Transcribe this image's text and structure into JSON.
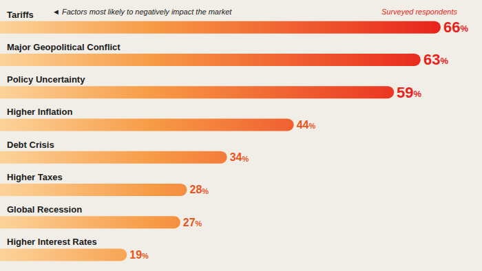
{
  "chart_data": {
    "type": "bar",
    "orientation": "horizontal",
    "categories": [
      "Tariffs",
      "Major Geopolitical Conflict",
      "Policy Uncertainty",
      "Higher Inflation",
      "Debt Crisis",
      "Higher Taxes",
      "Global Recession",
      "Higher Interest Rates"
    ],
    "values": [
      66,
      63,
      59,
      44,
      34,
      28,
      27,
      19
    ],
    "value_labels": [
      "66%",
      "63%",
      "59%",
      "44%",
      "34%",
      "28%",
      "27%",
      "19%"
    ],
    "data_labels": true,
    "tick_labels": "y",
    "grid": false,
    "color": "#e8231c",
    "annotations": [
      "◄ Factors most likely to negatively impact the market",
      "Surveyed respondents"
    ]
  }
}
